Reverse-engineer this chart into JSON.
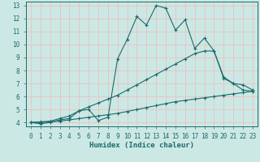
{
  "xlabel": "Humidex (Indice chaleur)",
  "xlim": [
    -0.5,
    23.5
  ],
  "ylim": [
    3.7,
    13.3
  ],
  "xticks": [
    0,
    1,
    2,
    3,
    4,
    5,
    6,
    7,
    8,
    9,
    10,
    11,
    12,
    13,
    14,
    15,
    16,
    17,
    18,
    19,
    20,
    21,
    22,
    23
  ],
  "yticks": [
    4,
    5,
    6,
    7,
    8,
    9,
    10,
    11,
    12,
    13
  ],
  "bg_color": "#cce8e4",
  "line_color": "#1a6b6b",
  "grid_major_color": "#f2b8b8",
  "grid_minor_color": "#cce8e4",
  "line1_x": [
    0,
    1,
    2,
    3,
    4,
    5,
    6,
    7,
    8,
    9,
    10,
    11,
    12,
    13,
    14,
    15,
    16,
    17,
    18,
    19,
    20,
    21,
    22,
    23
  ],
  "line1_y": [
    4.0,
    3.9,
    4.0,
    4.2,
    4.3,
    4.9,
    5.0,
    4.15,
    4.4,
    8.9,
    10.4,
    12.15,
    11.5,
    13.0,
    12.8,
    11.1,
    11.9,
    9.7,
    10.5,
    9.5,
    7.4,
    7.0,
    6.5,
    6.4
  ],
  "line2_x": [
    0,
    1,
    2,
    3,
    4,
    5,
    6,
    7,
    8,
    9,
    10,
    11,
    12,
    13,
    14,
    15,
    16,
    17,
    18,
    19,
    20,
    21,
    22,
    23
  ],
  "line2_y": [
    4.0,
    4.05,
    4.1,
    4.3,
    4.5,
    4.9,
    5.2,
    5.5,
    5.8,
    6.1,
    6.5,
    6.9,
    7.3,
    7.7,
    8.1,
    8.5,
    8.9,
    9.3,
    9.5,
    9.5,
    7.5,
    7.0,
    6.9,
    6.5
  ],
  "line3_x": [
    0,
    1,
    2,
    3,
    4,
    5,
    6,
    7,
    8,
    9,
    10,
    11,
    12,
    13,
    14,
    15,
    16,
    17,
    18,
    19,
    20,
    21,
    22,
    23
  ],
  "line3_y": [
    4.0,
    4.0,
    4.05,
    4.1,
    4.2,
    4.3,
    4.4,
    4.5,
    4.6,
    4.7,
    4.85,
    5.0,
    5.15,
    5.3,
    5.45,
    5.6,
    5.7,
    5.8,
    5.9,
    6.0,
    6.1,
    6.2,
    6.3,
    6.4
  ]
}
